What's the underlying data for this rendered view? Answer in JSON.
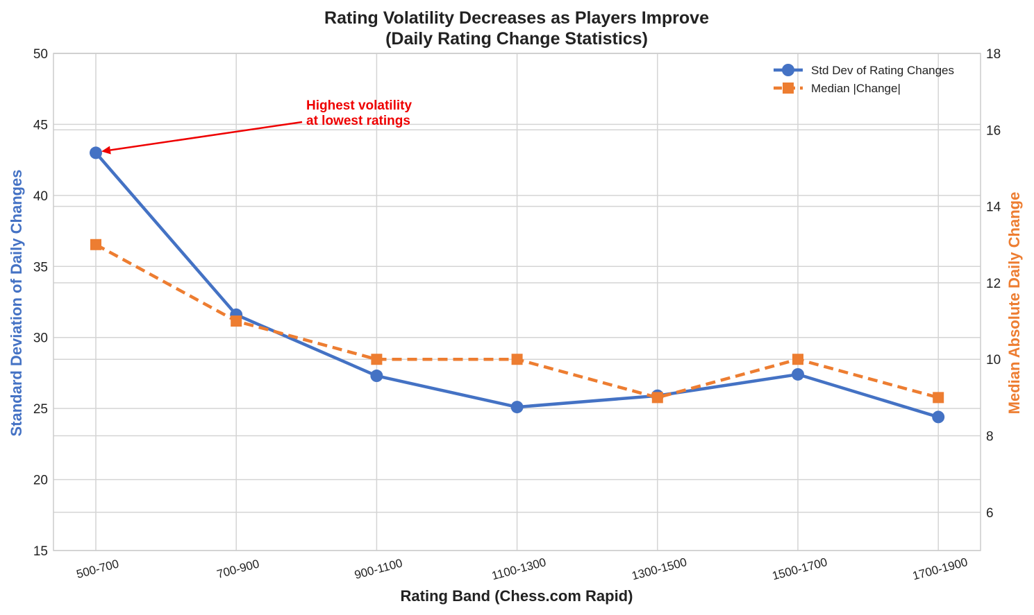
{
  "chart_data": {
    "type": "line",
    "title_line1": "Rating Volatility Decreases as Players Improve",
    "title_line2": "(Daily Rating Change Statistics)",
    "xlabel": "Rating Band (Chess.com Rapid)",
    "ylabel_left": "Standard Deviation of Daily Changes",
    "ylabel_right": "Median Absolute Daily Change",
    "categories": [
      "500-700",
      "700-900",
      "900-1100",
      "1100-1300",
      "1300-1500",
      "1500-1700",
      "1700-1900"
    ],
    "ylim_left": [
      15,
      50
    ],
    "yticks_left": [
      15,
      20,
      25,
      30,
      35,
      40,
      45,
      50
    ],
    "ylim_right": [
      5,
      18
    ],
    "yticks_right": [
      6,
      8,
      10,
      12,
      14,
      16,
      18
    ],
    "grid": true,
    "legend_position": "top-right",
    "series": [
      {
        "name": "Std Dev of Rating Changes",
        "axis": "left",
        "color": "#4472c4",
        "marker": "circle",
        "line_style": "solid",
        "values": [
          43.0,
          31.6,
          27.3,
          25.1,
          25.9,
          27.4,
          24.4
        ]
      },
      {
        "name": "Median |Change|",
        "axis": "right",
        "color": "#ed7d31",
        "marker": "square",
        "line_style": "dashed",
        "values": [
          13,
          11,
          10,
          10,
          9,
          10,
          9
        ]
      }
    ],
    "annotation": {
      "line1": "Highest volatility",
      "line2": "at lowest ratings",
      "color": "#ee0000",
      "target_category": "500-700",
      "target_value": 43.0
    }
  }
}
